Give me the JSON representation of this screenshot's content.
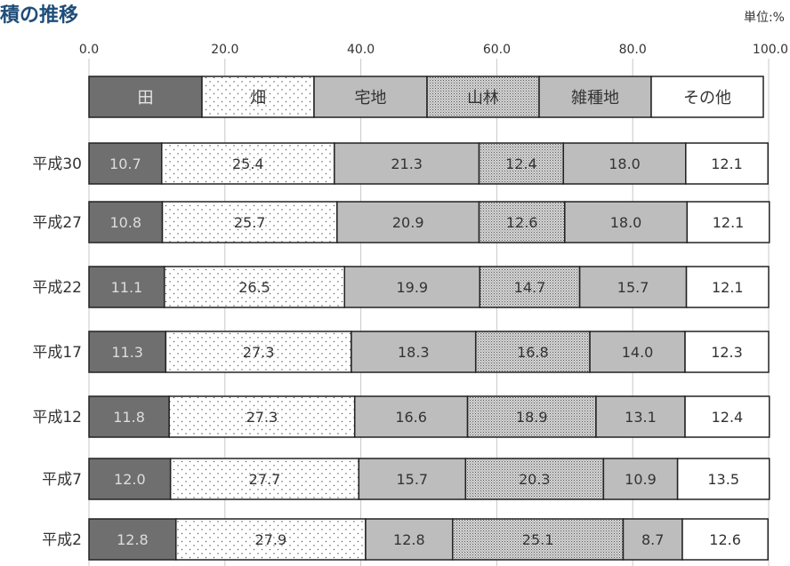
{
  "chart_data": {
    "type": "bar",
    "orientation": "horizontal",
    "stacked": "percent",
    "title": "積の推移",
    "unit_label": "単位:%",
    "xlim": [
      0,
      100
    ],
    "xticks": [
      "0.0",
      "20.0",
      "40.0",
      "60.0",
      "80.0",
      "100.0"
    ],
    "grid": true,
    "legend_position": "top",
    "categories": [
      "平成30",
      "平成27",
      "平成22",
      "平成17",
      "平成12",
      "平成7",
      "平成2"
    ],
    "series": [
      {
        "name": "田",
        "values": [
          10.7,
          10.8,
          11.1,
          11.3,
          11.8,
          12.0,
          12.8
        ],
        "color": "#6f6f6f",
        "pattern": "solid-dark"
      },
      {
        "name": "畑",
        "values": [
          25.4,
          25.7,
          26.5,
          27.3,
          27.3,
          27.7,
          27.9
        ],
        "color": "#ffffff",
        "pattern": "dots"
      },
      {
        "name": "宅地",
        "values": [
          21.3,
          20.9,
          19.9,
          18.3,
          16.6,
          15.7,
          12.8
        ],
        "color": "#bdbdbd",
        "pattern": "solid-gray"
      },
      {
        "name": "山林",
        "values": [
          12.4,
          12.6,
          14.7,
          16.8,
          18.9,
          20.3,
          25.1
        ],
        "color": "#c8c8c8",
        "pattern": "dense-dots"
      },
      {
        "name": "雑種地",
        "values": [
          18.0,
          18.0,
          15.7,
          14.0,
          13.1,
          10.9,
          8.7
        ],
        "color": "#bdbdbd",
        "pattern": "solid-gray"
      },
      {
        "name": "その他",
        "values": [
          12.1,
          12.1,
          12.1,
          12.3,
          12.4,
          13.5,
          12.6
        ],
        "color": "#ffffff",
        "pattern": "white"
      }
    ]
  }
}
